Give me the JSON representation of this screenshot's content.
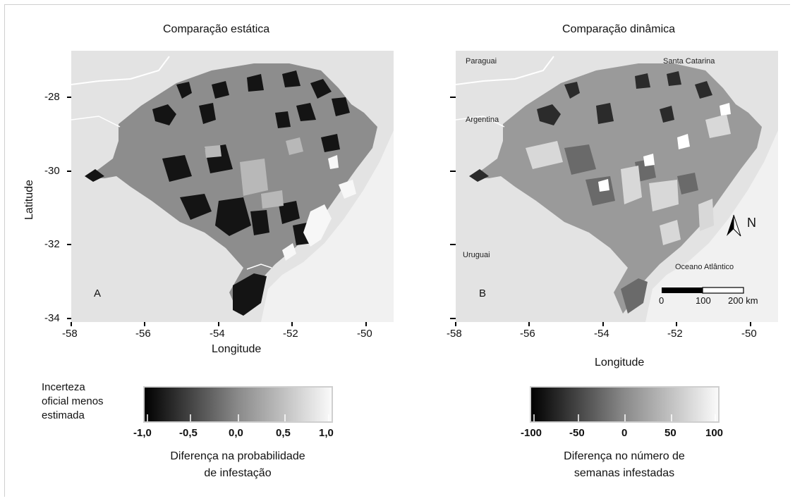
{
  "panels": [
    {
      "id": "A",
      "title": "Comparação estática",
      "letter": "A",
      "xlabel": "Longitude",
      "ylabel": "Latitude",
      "x_ticks": [
        "-58",
        "-56",
        "-54",
        "-52",
        "-50"
      ],
      "y_ticks": [
        "-28",
        "-30",
        "-32",
        "-34"
      ]
    },
    {
      "id": "B",
      "title": "Comparação dinâmica",
      "letter": "B",
      "xlabel": "Longitude",
      "x_ticks": [
        "-58",
        "-56",
        "-54",
        "-52",
        "-50"
      ],
      "regions": {
        "paraguai": "Paraguai",
        "santa_catarina": "Santa Catarina",
        "argentina": "Argentina",
        "uruguai": "Uruguai",
        "oceano": "Oceano Atlântico"
      },
      "north_label": "N",
      "scale_labels": [
        "0",
        "100",
        "200 km"
      ]
    }
  ],
  "legend": {
    "side_title": [
      "Incerteza",
      "oficial menos",
      "estimada"
    ],
    "left_bar": {
      "labels": [
        "-1,0",
        "-0,5",
        "0,0",
        "0,5",
        "1,0"
      ],
      "caption": [
        "Diferença na probabilidade",
        "de infestação"
      ],
      "range": [
        -1.0,
        1.0
      ]
    },
    "right_bar": {
      "labels": [
        "-100",
        "-50",
        "0",
        "50",
        "100"
      ],
      "caption": [
        "Diferença no número de",
        "semanas infestadas"
      ],
      "range": [
        -100,
        100
      ]
    }
  },
  "colors": {
    "background": "#e3e3e3",
    "land": "#8d8d8d",
    "ocean": "#f1f1f1",
    "river": "#ffffff",
    "dark": "#141414",
    "light": "#f7f7f7"
  }
}
